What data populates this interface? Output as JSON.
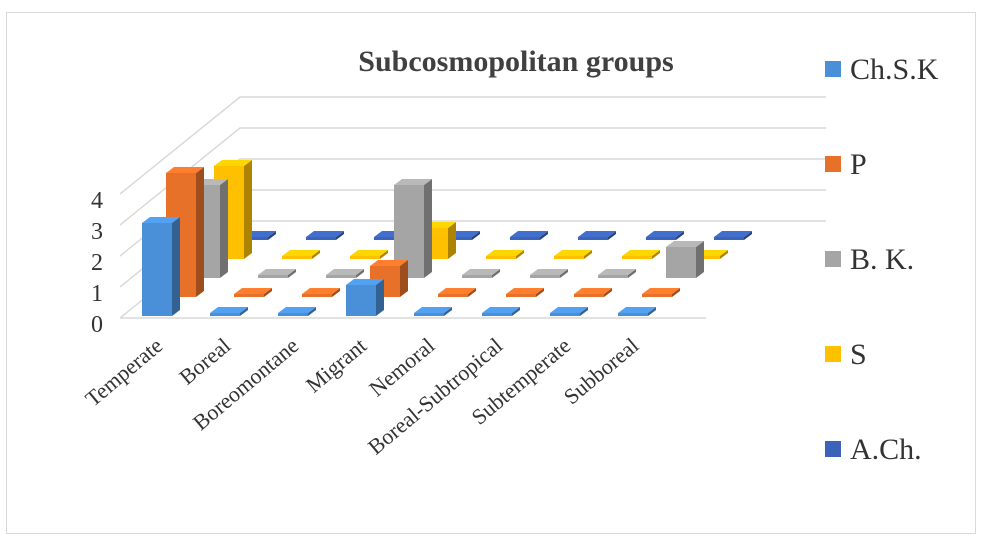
{
  "chart_data": {
    "type": "bar",
    "title": "Subcosmopolitan groups",
    "categories": [
      "Temperate",
      "Boreal",
      "Boreomontane",
      "Migrant",
      "Nemoral",
      "Boreal-Subtropical",
      "Subtemperate",
      "Subboreal"
    ],
    "series": [
      {
        "name": "Ch.S.K",
        "color": "#4a90d9",
        "values": [
          3,
          0,
          0,
          1,
          0,
          0,
          0,
          0
        ]
      },
      {
        "name": "P",
        "color": "#e8712a",
        "values": [
          4,
          0,
          0,
          1,
          0,
          0,
          0,
          0
        ]
      },
      {
        "name": "B. K.",
        "color": "#a5a5a5",
        "values": [
          3,
          0,
          0,
          3,
          0,
          0,
          0,
          1
        ]
      },
      {
        "name": "S",
        "color": "#ffc000",
        "values": [
          3,
          0,
          0,
          1,
          0,
          0,
          0,
          0
        ]
      },
      {
        "name": "A.Ch.",
        "color": "#3b63b8",
        "values": [
          0,
          0,
          0,
          0,
          0,
          0,
          0,
          0
        ]
      }
    ],
    "yticks": [
      0,
      1,
      2,
      3,
      4
    ],
    "ylim": [
      0,
      4
    ],
    "grid": true,
    "legend_position": "right"
  }
}
